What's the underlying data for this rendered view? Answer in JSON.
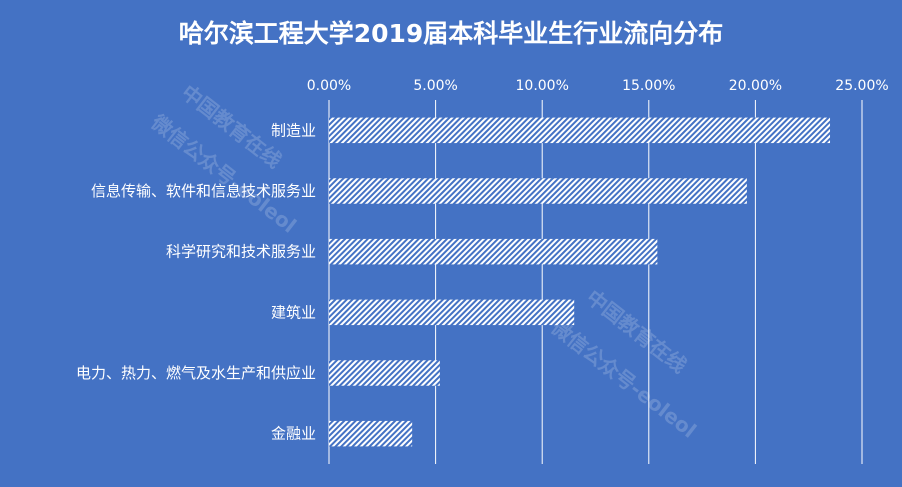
{
  "chart_data": {
    "type": "bar",
    "orientation": "horizontal",
    "title": "哈尔滨工程大学2019届本科毕业生行业流向分布",
    "categories": [
      "制造业",
      "信息传输、软件和信息技术服务业",
      "科学研究和技术服务业",
      "建筑业",
      "电力、热力、燃气及水生产和供应业",
      "金融业"
    ],
    "values": [
      23.5,
      19.6,
      15.4,
      11.5,
      5.2,
      3.9
    ],
    "xlim": [
      0,
      25
    ],
    "xticks": [
      "0.00%",
      "5.00%",
      "10.00%",
      "15.00%",
      "20.00%",
      "25.00%"
    ],
    "xaxis_position": "top",
    "grid": "vertical",
    "legend": "none",
    "colors": {
      "background": "#4472C4",
      "bar_pattern": "#FFFFFF",
      "text": "#FFFFFF",
      "grid": "#FFFFFF"
    }
  },
  "watermark": {
    "line1": "中国教育在线",
    "line2": "微信公众号-eoleol"
  }
}
